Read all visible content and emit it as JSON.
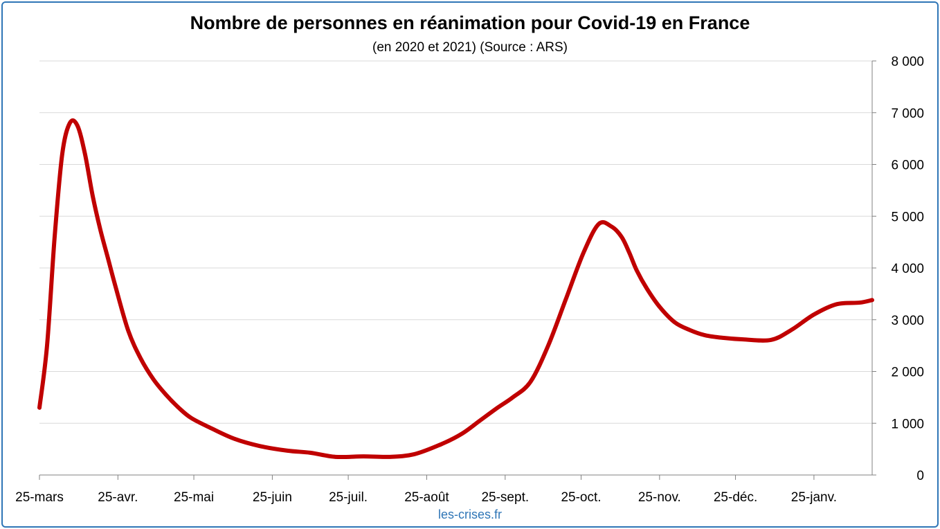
{
  "chart_data": {
    "type": "line",
    "title": "Nombre de personnes en réanimation pour Covid-19 en France",
    "subtitle": "(en 2020 et 2021) (Source : ARS)",
    "xlabel": "",
    "ylabel": "",
    "ylim": [
      0,
      8000
    ],
    "yticks": [
      0,
      1000,
      2000,
      3000,
      4000,
      5000,
      6000,
      7000,
      8000
    ],
    "ytick_labels": [
      "0",
      "1 000",
      "2 000",
      "3 000",
      "4 000",
      "5 000",
      "6 000",
      "7 000",
      "8 000"
    ],
    "y_axis_position": "right",
    "grid": true,
    "line_color": "#c00000",
    "xlim": [
      "2020-03-25",
      "2021-02-17"
    ],
    "xticks": [
      "2020-03-25",
      "2020-04-25",
      "2020-05-25",
      "2020-06-25",
      "2020-07-25",
      "2020-08-25",
      "2020-09-25",
      "2020-10-25",
      "2020-11-25",
      "2020-12-25",
      "2021-01-25"
    ],
    "xtick_labels": [
      "25-mars",
      "25-avr.",
      "25-mai",
      "25-juin",
      "25-juil.",
      "25-août",
      "25-sept.",
      "25-oct.",
      "25-nov.",
      "25-déc.",
      "25-janv."
    ],
    "series": [
      {
        "name": "",
        "x": [
          "2020-03-25",
          "2020-03-28",
          "2020-03-31",
          "2020-04-03",
          "2020-04-06",
          "2020-04-09",
          "2020-04-12",
          "2020-04-15",
          "2020-04-18",
          "2020-04-21",
          "2020-04-24",
          "2020-04-29",
          "2020-05-04",
          "2020-05-09",
          "2020-05-14",
          "2020-05-19",
          "2020-05-24",
          "2020-06-01",
          "2020-06-10",
          "2020-06-20",
          "2020-07-01",
          "2020-07-10",
          "2020-07-20",
          "2020-07-31",
          "2020-08-10",
          "2020-08-20",
          "2020-08-31",
          "2020-09-08",
          "2020-09-15",
          "2020-09-22",
          "2020-09-28",
          "2020-10-05",
          "2020-10-12",
          "2020-10-19",
          "2020-10-26",
          "2020-11-01",
          "2020-11-06",
          "2020-11-10",
          "2020-11-13",
          "2020-11-16",
          "2020-11-20",
          "2020-11-25",
          "2020-12-01",
          "2020-12-07",
          "2020-12-13",
          "2020-12-20",
          "2020-12-28",
          "2021-01-08",
          "2021-01-16",
          "2021-01-25",
          "2021-02-03",
          "2021-02-12",
          "2021-02-17"
        ],
        "y": [
          1300,
          2500,
          4600,
          6200,
          6800,
          6750,
          6200,
          5400,
          4750,
          4200,
          3650,
          2800,
          2250,
          1850,
          1550,
          1300,
          1100,
          900,
          700,
          560,
          470,
          430,
          350,
          360,
          350,
          400,
          600,
          800,
          1050,
          1300,
          1500,
          1800,
          2500,
          3400,
          4300,
          4850,
          4800,
          4600,
          4300,
          3950,
          3600,
          3250,
          2950,
          2800,
          2700,
          2650,
          2620,
          2610,
          2800,
          3100,
          3300,
          3330,
          3380
        ]
      }
    ]
  },
  "footer": {
    "credit": "les-crises.fr"
  }
}
